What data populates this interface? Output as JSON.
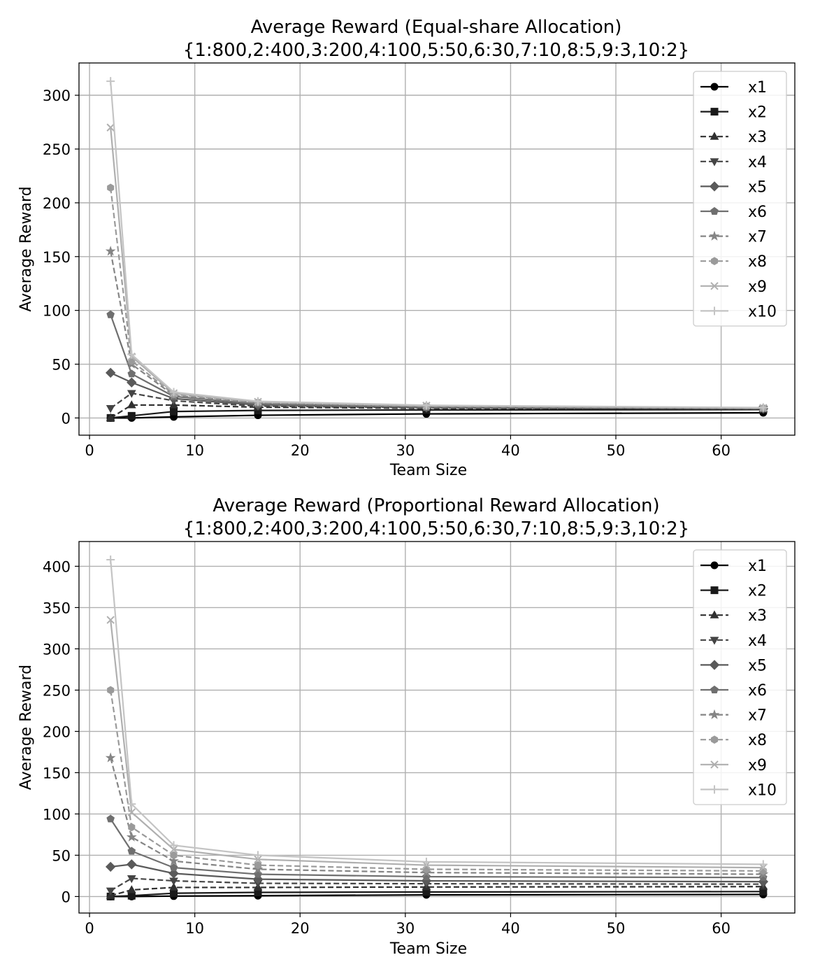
{
  "chart_data": [
    {
      "type": "line",
      "title": "Average Reward (Equal-share Allocation)",
      "subtitle": "{1:800,2:400,3:200,4:100,5:50,6:30,7:10,8:5,9:3,10:2}",
      "xlabel": "Team Size",
      "ylabel": "Average Reward",
      "xlim": [
        -1,
        67
      ],
      "ylim": [
        -16,
        330
      ],
      "xticks": [
        0,
        10,
        20,
        30,
        40,
        50,
        60
      ],
      "yticks": [
        0,
        50,
        100,
        150,
        200,
        250,
        300
      ],
      "grid": true,
      "legend_position": "top-right",
      "x": [
        2,
        4,
        8,
        16,
        32,
        64
      ],
      "series": [
        {
          "name": "x1",
          "values": [
            0,
            0,
            1,
            2.5,
            3.8,
            4.8
          ],
          "color": "#000000",
          "dash": "solid",
          "marker": "circle"
        },
        {
          "name": "x2",
          "values": [
            0,
            2,
            6,
            7,
            7.5,
            7.8
          ],
          "color": "#1a1a1a",
          "dash": "solid",
          "marker": "square"
        },
        {
          "name": "x3",
          "values": [
            0,
            12,
            12,
            10,
            9,
            8.5
          ],
          "color": "#303030",
          "dash": "dashed",
          "marker": "triangle-up"
        },
        {
          "name": "x4",
          "values": [
            9,
            23,
            16,
            11,
            9.5,
            8.5
          ],
          "color": "#454545",
          "dash": "dashed",
          "marker": "triangle-down"
        },
        {
          "name": "x5",
          "values": [
            42,
            33,
            18,
            12,
            9.8,
            8.6
          ],
          "color": "#5a5a5a",
          "dash": "solid",
          "marker": "diamond"
        },
        {
          "name": "x6",
          "values": [
            96,
            41,
            20,
            13,
            10,
            8.8
          ],
          "color": "#6f6f6f",
          "dash": "solid",
          "marker": "pentagon"
        },
        {
          "name": "x7",
          "values": [
            155,
            50,
            21,
            14,
            10.5,
            9
          ],
          "color": "#858585",
          "dash": "dashed",
          "marker": "star"
        },
        {
          "name": "x8",
          "values": [
            214,
            53,
            22,
            14.5,
            11,
            9.2
          ],
          "color": "#9a9a9a",
          "dash": "dashed",
          "marker": "hexagon"
        },
        {
          "name": "x9",
          "values": [
            270,
            57,
            23,
            15,
            11.5,
            9.4
          ],
          "color": "#afafaf",
          "dash": "solid",
          "marker": "x"
        },
        {
          "name": "x10",
          "values": [
            313,
            59,
            24,
            15.5,
            11.8,
            9.6
          ],
          "color": "#c4c4c4",
          "dash": "solid",
          "marker": "plus"
        }
      ]
    },
    {
      "type": "line",
      "title": "Average Reward (Proportional Reward Allocation)",
      "subtitle": "{1:800,2:400,3:200,4:100,5:50,6:30,7:10,8:5,9:3,10:2}",
      "xlabel": "Team Size",
      "ylabel": "Average Reward",
      "xlim": [
        -1,
        67
      ],
      "ylim": [
        -20,
        430
      ],
      "xticks": [
        0,
        10,
        20,
        30,
        40,
        50,
        60
      ],
      "yticks": [
        0,
        50,
        100,
        150,
        200,
        250,
        300,
        350,
        400
      ],
      "grid": true,
      "legend_position": "top-right",
      "x": [
        2,
        4,
        8,
        16,
        32,
        64
      ],
      "series": [
        {
          "name": "x1",
          "values": [
            0,
            0,
            0.5,
            1,
            2,
            2.5
          ],
          "color": "#000000",
          "dash": "solid",
          "marker": "circle"
        },
        {
          "name": "x2",
          "values": [
            0,
            1,
            4,
            5,
            5.5,
            6
          ],
          "color": "#1a1a1a",
          "dash": "solid",
          "marker": "square"
        },
        {
          "name": "x3",
          "values": [
            1,
            8,
            11,
            11,
            11.5,
            12
          ],
          "color": "#303030",
          "dash": "dashed",
          "marker": "triangle-up"
        },
        {
          "name": "x4",
          "values": [
            7,
            22,
            19,
            16,
            15.5,
            15
          ],
          "color": "#454545",
          "dash": "dashed",
          "marker": "triangle-down"
        },
        {
          "name": "x5",
          "values": [
            36,
            39,
            28,
            21,
            19,
            18
          ],
          "color": "#5a5a5a",
          "dash": "solid",
          "marker": "diamond"
        },
        {
          "name": "x6",
          "values": [
            94,
            55,
            35,
            27,
            24,
            23
          ],
          "color": "#6f6f6f",
          "dash": "solid",
          "marker": "pentagon"
        },
        {
          "name": "x7",
          "values": [
            168,
            72,
            43,
            33,
            29,
            27
          ],
          "color": "#858585",
          "dash": "dashed",
          "marker": "star"
        },
        {
          "name": "x8",
          "values": [
            250,
            84,
            50,
            38,
            33,
            31
          ],
          "color": "#9a9a9a",
          "dash": "dashed",
          "marker": "hexagon"
        },
        {
          "name": "x9",
          "values": [
            335,
            102,
            57,
            45,
            38,
            35
          ],
          "color": "#afafaf",
          "dash": "solid",
          "marker": "x"
        },
        {
          "name": "x10",
          "values": [
            408,
            112,
            62,
            50,
            42,
            39
          ],
          "color": "#c4c4c4",
          "dash": "solid",
          "marker": "plus"
        }
      ]
    }
  ]
}
